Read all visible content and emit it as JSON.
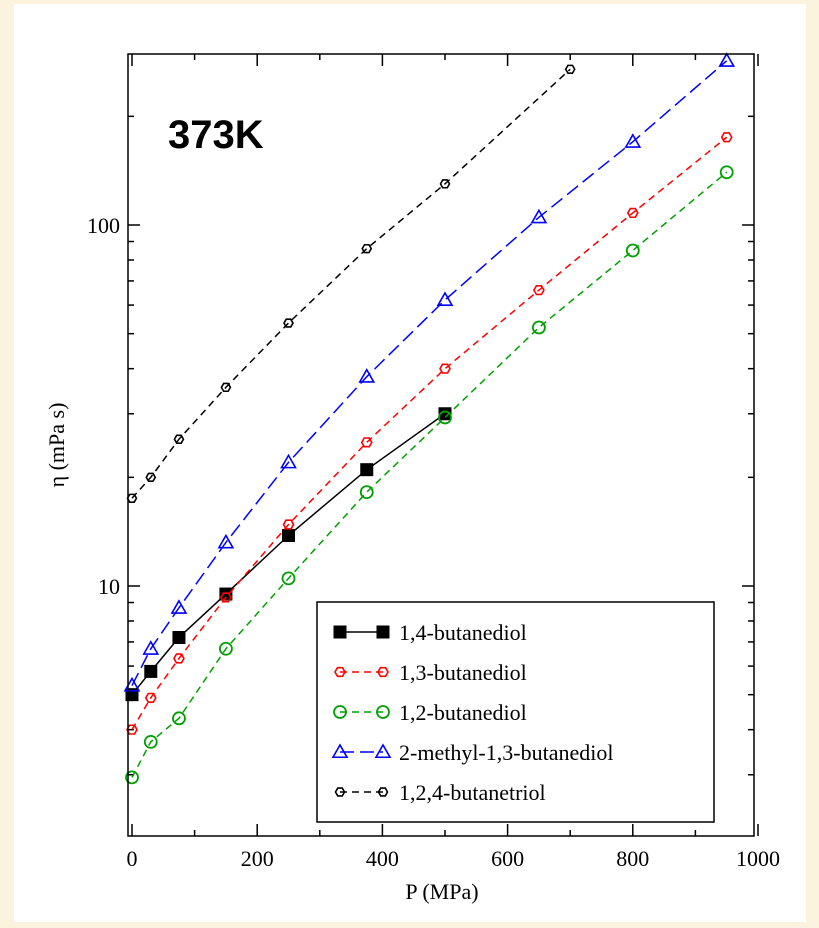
{
  "chart_data": {
    "type": "line",
    "annotation": "373K",
    "xlabel": "P (MPa)",
    "ylabel": "η (mPa s)",
    "xlim": [
      0,
      1000
    ],
    "ylim": [
      2.5,
      350
    ],
    "yscale": "log",
    "x_ticks": [
      "0",
      "200",
      "400",
      "600",
      "800",
      "1000"
    ],
    "y_ticks": [
      "10",
      "100"
    ],
    "legend_position": "bottom-right",
    "series": [
      {
        "name": "1,4-butanediol",
        "color": "#000000",
        "marker": "square-filled",
        "dash": "solid",
        "x": [
          0,
          30,
          75,
          150,
          250,
          375,
          500
        ],
        "y": [
          5.0,
          5.8,
          7.2,
          9.5,
          13.8,
          21.0,
          30.0
        ]
      },
      {
        "name": "1,3-butanediol",
        "color": "#ff0000",
        "marker": "hexagon-open",
        "dash": "dashed",
        "x": [
          0,
          30,
          75,
          150,
          250,
          375,
          500,
          650,
          800,
          950
        ],
        "y": [
          4.0,
          4.9,
          6.3,
          9.3,
          14.8,
          25.0,
          40.0,
          66.0,
          108.0,
          175.0
        ]
      },
      {
        "name": "1,2-butanediol",
        "color": "#00a000",
        "marker": "circle-open",
        "dash": "dashed",
        "x": [
          0,
          30,
          75,
          150,
          250,
          375,
          500,
          650,
          800,
          950
        ],
        "y": [
          2.95,
          3.7,
          4.3,
          6.7,
          10.5,
          18.2,
          29.3,
          52.0,
          85.0,
          140.0
        ]
      },
      {
        "name": "2-methyl-1,3-butanediol",
        "color": "#0000ff",
        "marker": "triangle-open",
        "dash": "dashed",
        "x": [
          0,
          30,
          75,
          150,
          250,
          375,
          500,
          650,
          800,
          950
        ],
        "y": [
          5.3,
          6.7,
          8.7,
          13.2,
          22.0,
          38.0,
          62.0,
          105.0,
          170.0,
          285.0
        ]
      },
      {
        "name": "1,2,4-butanetriol",
        "color": "#000000",
        "marker": "hexagon-open-small",
        "dash": "dashed",
        "x": [
          0,
          30,
          75,
          150,
          250,
          375,
          500,
          700
        ],
        "y": [
          17.5,
          20.0,
          25.5,
          35.5,
          53.5,
          86.0,
          130.0,
          270.0
        ]
      }
    ]
  }
}
